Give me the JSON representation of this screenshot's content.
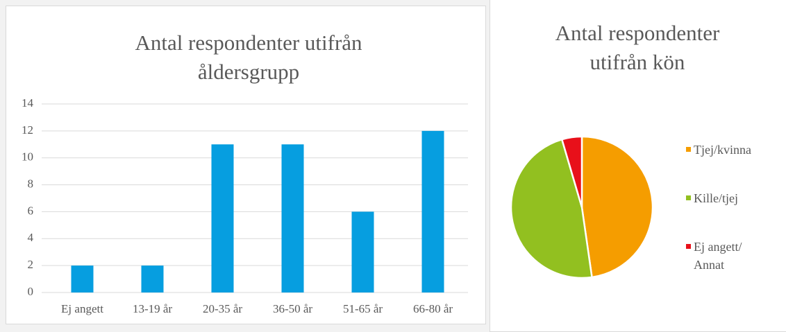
{
  "chart_data": [
    {
      "type": "bar",
      "title": "Antal respondenter utifrån åldersgrupp",
      "categories": [
        "Ej angett",
        "13-19 år",
        "20-35 år",
        "36-50 år",
        "51-65 år",
        "66-80 år"
      ],
      "values": [
        2,
        2,
        11,
        11,
        6,
        12
      ],
      "color": "#069ee0",
      "ylim": [
        0,
        14
      ],
      "yticks": [
        0,
        2,
        4,
        6,
        8,
        10,
        12,
        14
      ],
      "grid": true
    },
    {
      "type": "pie",
      "title": "Antal respondenter utifrån kön",
      "categories": [
        "Tjej/kvinna",
        "Kille/tjej",
        "Ej angett/ Annat"
      ],
      "values": [
        21,
        21,
        2
      ],
      "colors": [
        "#f59d00",
        "#92c020",
        "#e8101a"
      ],
      "legend": "right"
    }
  ]
}
